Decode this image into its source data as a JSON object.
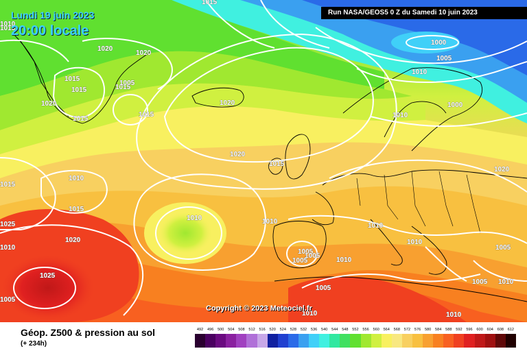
{
  "header": {
    "date": "Lundi 19 juin 2023",
    "local_time": "20:00 locale",
    "run": "Run NASA/GEOS5 0 Z du Samedi 10 juin 2023"
  },
  "copyright": "Copyright © 2023 Meteociel.fr",
  "footer": {
    "parameter": "Géop. Z500 & pression au sol",
    "lead_time": "(+ 234h)"
  },
  "legend": {
    "values": [
      "492",
      "496",
      "500",
      "504",
      "508",
      "512",
      "516",
      "520",
      "524",
      "528",
      "532",
      "536",
      "540",
      "544",
      "548",
      "552",
      "556",
      "560",
      "564",
      "568",
      "572",
      "576",
      "580",
      "584",
      "588",
      "592",
      "596",
      "600",
      "604",
      "608",
      "612"
    ],
    "colors": [
      "#2a0030",
      "#4a0060",
      "#6a0a80",
      "#8a20a0",
      "#a040c0",
      "#b070d8",
      "#c8a8e8",
      "#1020a0",
      "#2040d0",
      "#2a6ae8",
      "#3aa0f0",
      "#40d0f8",
      "#40f0e0",
      "#30e8a0",
      "#40e060",
      "#60e030",
      "#a0e830",
      "#d0f040",
      "#f8f060",
      "#f8e880",
      "#f8d060",
      "#f8c040",
      "#f8a030",
      "#f88020",
      "#f86020",
      "#f04020",
      "#e02020",
      "#c01818",
      "#a01010",
      "#600808",
      "#200000"
    ]
  },
  "isobars": [
    "1015",
    "1020",
    "1025",
    "1000",
    "1005",
    "1010",
    "1015",
    "1020",
    "1015",
    "1015",
    "1015",
    "1015",
    "1020",
    "1015",
    "1020",
    "1015",
    "1010",
    "1015",
    "1020",
    "1010",
    "1025",
    "1010",
    "1010",
    "1020",
    "1015",
    "1010",
    "1010",
    "1010",
    "1005",
    "1005",
    "1005",
    "1005",
    "1005",
    "1010",
    "1010",
    "1000",
    "1005",
    "1010",
    "1010",
    "1010",
    "1005",
    "1005",
    "1020"
  ]
}
